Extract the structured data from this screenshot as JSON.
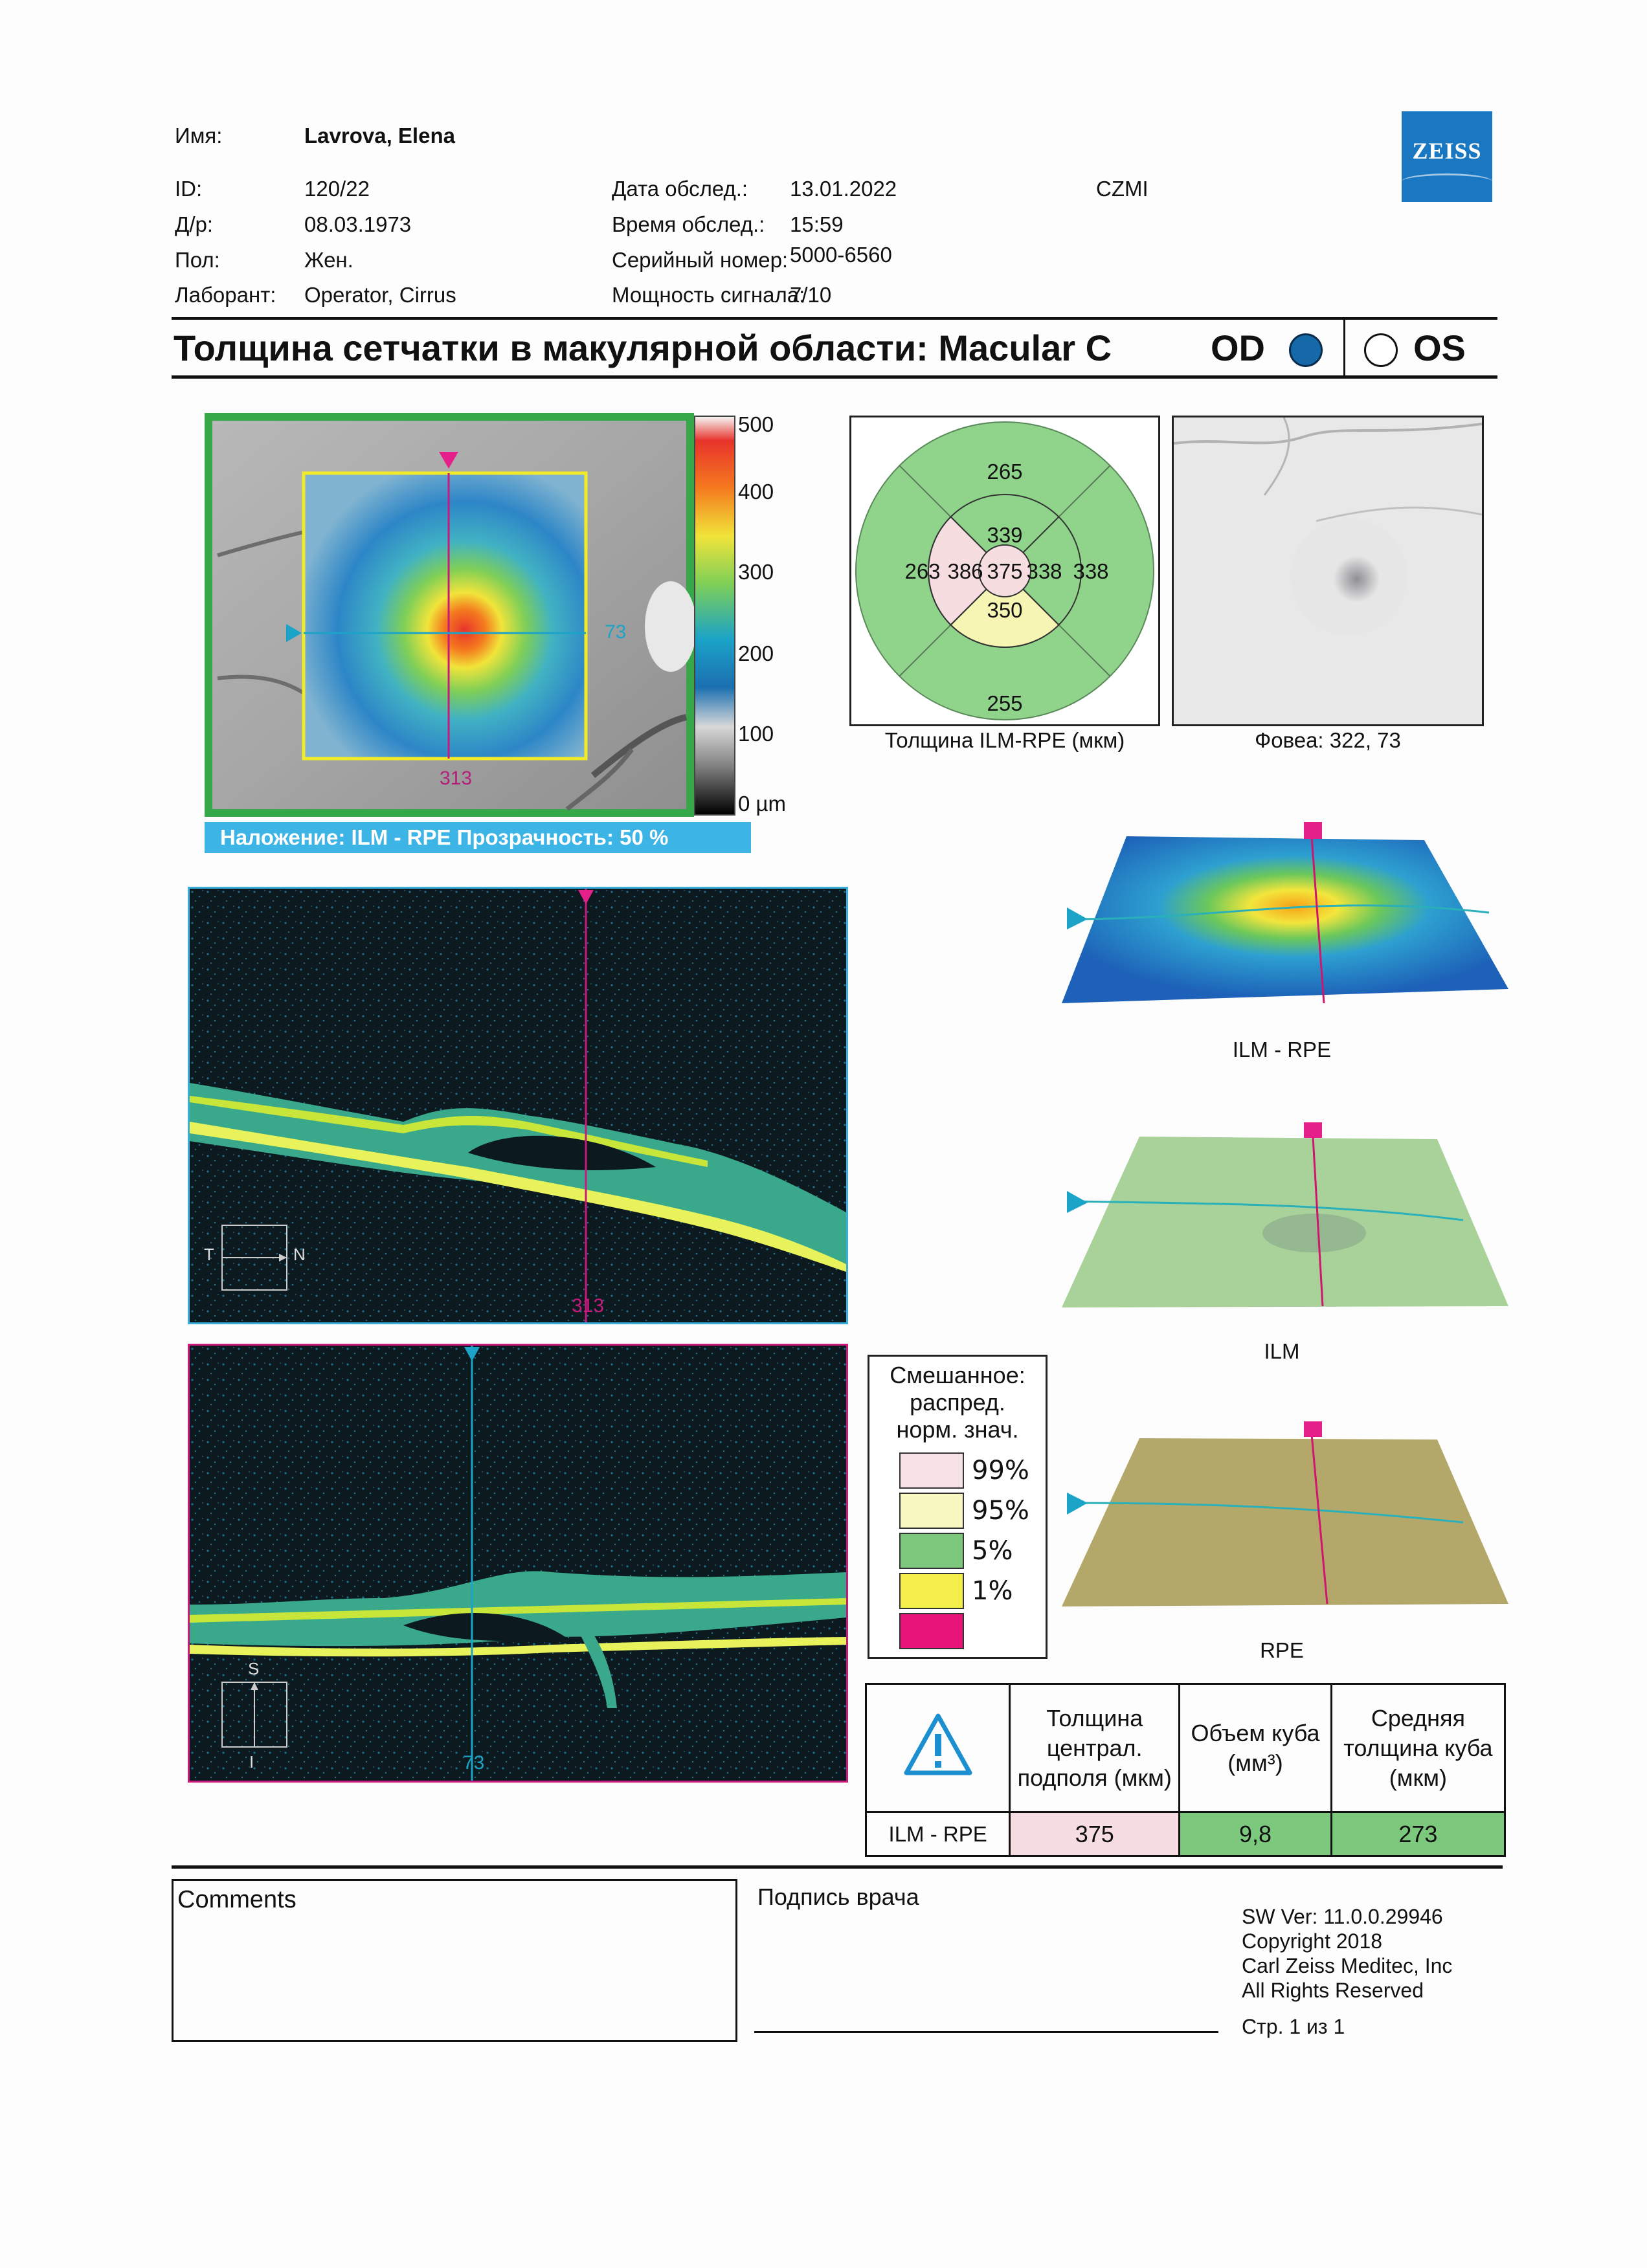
{
  "patient": {
    "name_label": "Имя:",
    "name_value": "Lavrova, Elena",
    "id_label": "ID:",
    "id_value": "120/22",
    "dob_label": "Д/р:",
    "dob_value": "08.03.1973",
    "sex_label": "Пол:",
    "sex_value": "Жен.",
    "tech_label": "Лаборант:",
    "tech_value": "Operator, Cirrus"
  },
  "exam": {
    "date_label": "Дата обслед.:",
    "date_value": "13.01.2022",
    "time_label": "Время обслед.:",
    "time_value": "15:59",
    "serial_label": "Серийный номер:",
    "serial_value": "5000-6560",
    "signal_label": "Мощность сигнала:",
    "signal_value": "7/10",
    "site": "CZMI"
  },
  "logo_text": "ZEISS",
  "report": {
    "title": "Толщина сетчатки в макулярной области: Macular C",
    "od_label": "OD",
    "os_label": "OS",
    "selected_eye": "OD"
  },
  "thickness_map": {
    "overlay_caption": "Наложение: ILM - RPE  Прозрачность: 50 %",
    "vertical_marker": "313",
    "horizontal_marker": "73",
    "scale": [
      "500",
      "400",
      "300",
      "200",
      "100",
      "0 µm"
    ]
  },
  "etdrs": {
    "caption": "Толщина ILM-RPE (мкм)",
    "outer_superior": "265",
    "outer_temporal": "263",
    "outer_nasal": "338",
    "outer_inferior": "255",
    "inner_superior": "339",
    "inner_temporal": "386",
    "inner_nasal": "338",
    "inner_inferior": "350",
    "center": "375",
    "colors": {
      "normal": "#8fd48a",
      "pink": "#f5dde0",
      "yellow": "#f6f5b4"
    }
  },
  "fundus": {
    "caption": "Фовеа: 322, 73"
  },
  "bscan_h": {
    "marker_label": "313",
    "orient_left": "T",
    "orient_right": "N"
  },
  "bscan_v": {
    "marker_label": "73",
    "orient_top": "S",
    "orient_bottom": "I"
  },
  "surfaces": [
    {
      "label": "ILM - RPE"
    },
    {
      "label": "ILM"
    },
    {
      "label": "RPE"
    }
  ],
  "legend": {
    "title_lines": [
      "Смешанное:",
      "распред.",
      "норм. знач."
    ],
    "items": [
      {
        "label": "99%",
        "color": "#f6e2e6"
      },
      {
        "label": "95%",
        "color": "#f8f7c2"
      },
      {
        "label": "5%",
        "color": "#7cc97d"
      },
      {
        "label": "1%",
        "color": "#f4ee4a"
      },
      {
        "label": "",
        "color": "#e8147a"
      }
    ]
  },
  "results": {
    "col1": "Толщина централ. подполя (мкм)",
    "col2": "Объем куба (мм³)",
    "col3": "Средняя толщина куба (мкм)",
    "row_label": "ILM - RPE",
    "val1": "375",
    "val2": "9,8",
    "val3": "273"
  },
  "footer": {
    "comments_label": "Comments",
    "signature_label": "Подпись врача",
    "sw_version": "SW Ver: 11.0.0.29946",
    "copyright": "Copyright 2018",
    "company": "Carl Zeiss Meditec, Inc",
    "rights": "All Rights Reserved",
    "page": "Стр. 1 из 1"
  }
}
